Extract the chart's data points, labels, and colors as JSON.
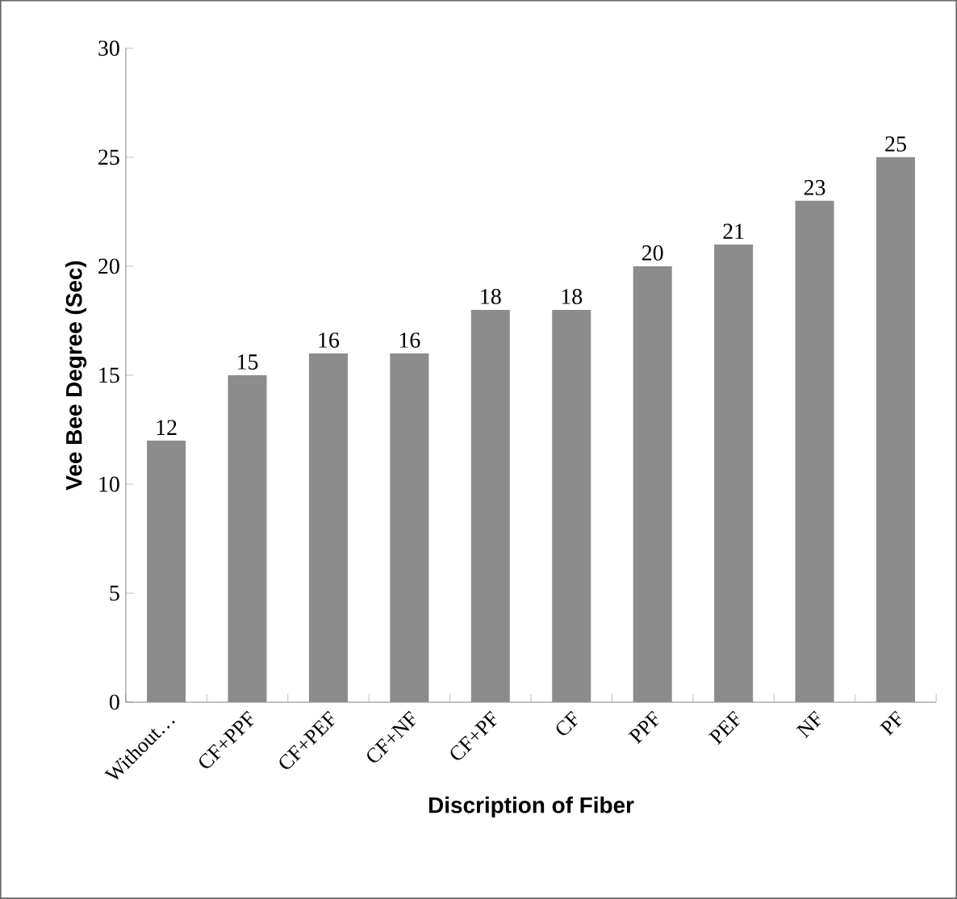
{
  "chart_data": {
    "type": "bar",
    "xlabel": "Discription of Fiber",
    "ylabel": "Vee Bee Degree (Sec)",
    "categories": [
      "Without…",
      "CF+PPF",
      "CF+PEF",
      "CF+NF",
      "CF+PF",
      "CF",
      "PPF",
      "PEF",
      "NF",
      "PF"
    ],
    "values": [
      12,
      15,
      16,
      16,
      18,
      18,
      20,
      21,
      23,
      25
    ],
    "color": "#8c8c8c",
    "ylim": [
      0,
      30
    ],
    "yticks": [
      0,
      5,
      10,
      15,
      20,
      25,
      30
    ],
    "data_labels": true
  }
}
